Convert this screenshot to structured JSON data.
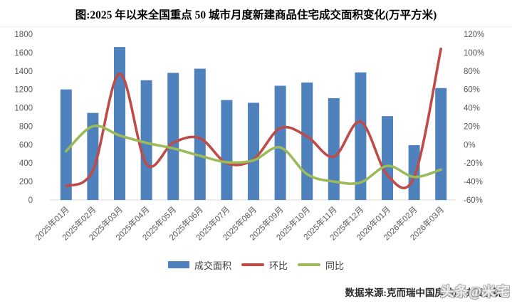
{
  "title": "图:2025 年以来全国重点 50 城市月度新建商品住宅成交面积变化(万平方米)",
  "source_note": "数据来源:克而瑞中国房地产决策系统",
  "watermark": "头条@米宅",
  "colors": {
    "bar": "#4F81BD",
    "mom_line": "#BE4B48",
    "yoy_line": "#9BBB59",
    "axis_text": "#595959",
    "baseline": "#D9D9D9",
    "title_text": "#000000"
  },
  "legend": [
    {
      "label": "成交面积",
      "type": "bar"
    },
    {
      "label": "环比",
      "type": "line"
    },
    {
      "label": "同比",
      "type": "line"
    }
  ],
  "chart_data": {
    "type": "bar+line",
    "title": "图:2025 年以来全国重点 50 城市月度新建商品住宅成交面积变化(万平方米)",
    "categories": [
      "2025年01月",
      "2025年02月",
      "2025年03月",
      "2025年04月",
      "2025年05月",
      "2025年06月",
      "2025年07月",
      "2025年08月",
      "2025年09月",
      "2025年10月",
      "2025年11月",
      "2025年12月",
      "2026年01月",
      "2026年02月",
      "2026年03月"
    ],
    "series": [
      {
        "name": "成交面积",
        "type": "bar",
        "axis": "left",
        "unit": "万平方米",
        "values": [
          1200,
          945,
          1660,
          1300,
          1380,
          1425,
          1085,
          1055,
          1240,
          1275,
          1105,
          1385,
          910,
          595,
          1215
        ]
      },
      {
        "name": "环比",
        "type": "line",
        "axis": "right",
        "unit": "%",
        "values": [
          -45,
          -28,
          77,
          -21,
          2,
          7,
          -20,
          -16,
          18,
          9,
          -13,
          25,
          -33,
          -35,
          104
        ]
      },
      {
        "name": "同比",
        "type": "line",
        "axis": "right",
        "unit": "%",
        "values": [
          -7,
          20,
          10,
          2,
          -4,
          -12,
          -19,
          -17,
          -3,
          -32,
          -40,
          -41,
          -23,
          -35,
          -27
        ]
      }
    ],
    "left_axis": {
      "min": 0,
      "max": 1800,
      "step": 200,
      "tick_labels": [
        "0",
        "200",
        "400",
        "600",
        "800",
        "1000",
        "1200",
        "1400",
        "1600",
        "1800"
      ]
    },
    "right_axis": {
      "min": -60,
      "max": 120,
      "step": 20,
      "tick_labels": [
        "-60%",
        "-40%",
        "-20%",
        "0%",
        "20%",
        "40%",
        "60%",
        "80%",
        "100%",
        "120%"
      ]
    },
    "grid": false,
    "legend_position": "bottom",
    "x_label_rotation": -45
  }
}
